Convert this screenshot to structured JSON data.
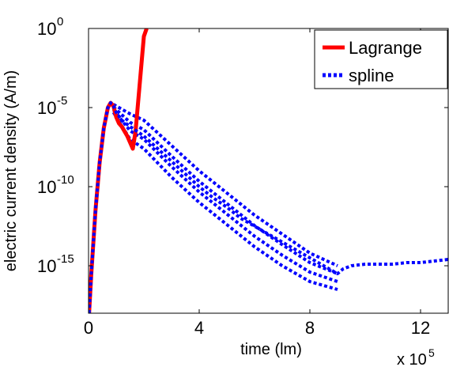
{
  "chart_data": {
    "type": "line",
    "title": "",
    "xlabel": "time (lm)",
    "ylabel": "electric current density (A/m)",
    "x_multiplier_label": "x 10",
    "x_multiplier_exponent": "5",
    "xlim": [
      0,
      1300000
    ],
    "ylim_log10": [
      -18,
      0
    ],
    "yscale": "log",
    "grid": false,
    "legend_position": "top-right",
    "x_ticks": [
      {
        "value": 0,
        "label": "0"
      },
      {
        "value": 400000,
        "label": "4"
      },
      {
        "value": 800000,
        "label": "8"
      },
      {
        "value": 1200000,
        "label": "12"
      }
    ],
    "y_ticks": [
      {
        "exp": 0,
        "base": "10",
        "sup": "0"
      },
      {
        "exp": -5,
        "base": "10",
        "sup": "-5"
      },
      {
        "exp": -10,
        "base": "10",
        "sup": "-10"
      },
      {
        "exp": -15,
        "base": "10",
        "sup": "-15"
      }
    ],
    "series": [
      {
        "name": "Lagrange",
        "color": "#ff0000",
        "style": "solid",
        "x": [
          2000,
          10000,
          25000,
          40000,
          55000,
          70000,
          80000,
          90000,
          100000,
          110000,
          120000,
          130000,
          140000,
          150000,
          160000,
          170000,
          180000,
          190000,
          200000,
          210000
        ],
        "log10_y": [
          -18,
          -15.5,
          -11.5,
          -8.5,
          -6.3,
          -5.0,
          -4.7,
          -4.9,
          -5.6,
          -6.0,
          -6.2,
          -6.5,
          -6.8,
          -7.2,
          -7.6,
          -6.5,
          -4.5,
          -2.5,
          -0.5,
          0
        ]
      },
      {
        "name": "spline",
        "color": "#0000ff",
        "style": "dotted",
        "x": [
          2000,
          10000,
          25000,
          40000,
          55000,
          70000,
          80000,
          90000,
          100000,
          120000,
          150000,
          200000,
          250000,
          300000,
          350000,
          400000,
          450000,
          500000,
          550000,
          600000,
          650000,
          700000,
          750000,
          800000,
          850000,
          880000,
          900000,
          920000,
          950000,
          1000000,
          1050000,
          1100000,
          1150000,
          1200000,
          1250000,
          1300000
        ],
        "log10_y": [
          -18,
          -15.5,
          -11.5,
          -8.5,
          -6.3,
          -5.0,
          -4.7,
          -4.9,
          -5.3,
          -5.8,
          -6.2,
          -6.8,
          -7.6,
          -8.4,
          -9.2,
          -10.0,
          -10.7,
          -11.3,
          -12.0,
          -12.5,
          -13.0,
          -13.5,
          -14.0,
          -14.5,
          -15.0,
          -15.3,
          -15.5,
          -15.2,
          -15.0,
          -14.9,
          -14.9,
          -14.9,
          -14.8,
          -14.8,
          -14.7,
          -14.6
        ]
      }
    ],
    "spline_band_log10": {
      "x": [
        90000,
        150000,
        200000,
        300000,
        400000,
        500000,
        600000,
        700000,
        800000,
        900000
      ],
      "upper": [
        -4.8,
        -5.4,
        -5.8,
        -7.4,
        -9.0,
        -10.4,
        -11.8,
        -13.0,
        -14.2,
        -15.0
      ],
      "lower": [
        -5.3,
        -7.0,
        -7.6,
        -9.4,
        -11.0,
        -12.4,
        -13.8,
        -15.0,
        -16.0,
        -16.5
      ]
    }
  }
}
